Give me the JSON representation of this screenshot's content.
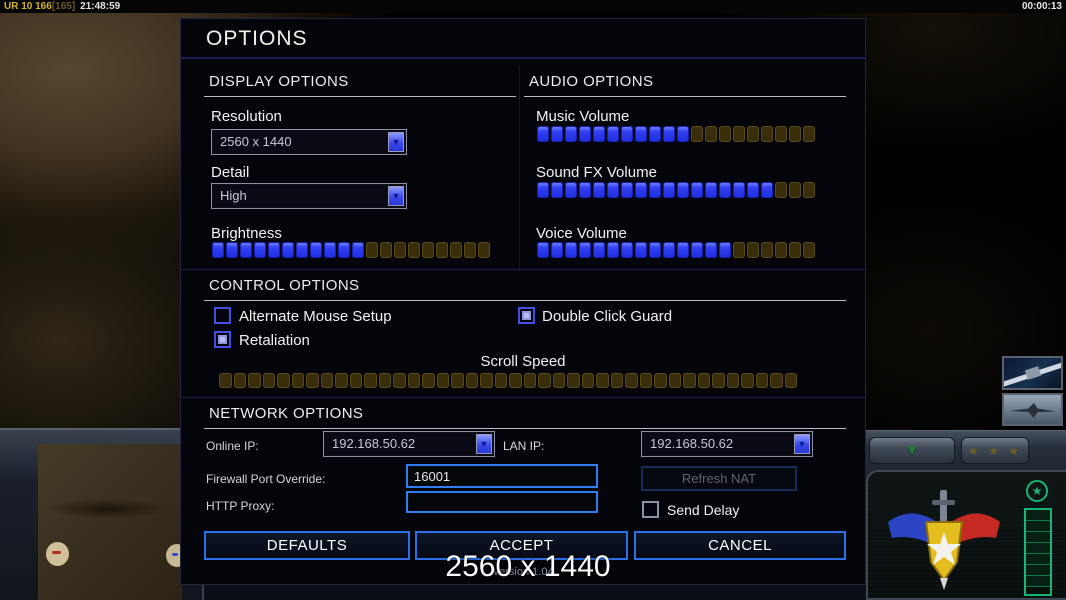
{
  "hud": {
    "left_stats": "UR 10 166",
    "left_bracket": "[165]",
    "left_time": "21:48:59",
    "right_time": "00:00:13"
  },
  "background": {
    "rank_stars": "★ ★ ★",
    "rank_badge_star": "★"
  },
  "dialog": {
    "title": "OPTIONS",
    "display": {
      "header": "DISPLAY OPTIONS",
      "resolution_label": "Resolution",
      "resolution_value": "2560 x 1440",
      "detail_label": "Detail",
      "detail_value": "High",
      "brightness_label": "Brightness",
      "brightness": {
        "filled": 11,
        "total": 20
      }
    },
    "audio": {
      "header": "AUDIO OPTIONS",
      "music_label": "Music Volume",
      "music": {
        "filled": 11,
        "total": 20
      },
      "sfx_label": "Sound FX Volume",
      "sfx": {
        "filled": 17,
        "total": 20
      },
      "voice_label": "Voice Volume",
      "voice": {
        "filled": 14,
        "total": 20
      }
    },
    "control": {
      "header": "CONTROL OPTIONS",
      "alternate_mouse": {
        "label": "Alternate Mouse Setup",
        "checked": false
      },
      "double_click": {
        "label": "Double Click Guard",
        "checked": true
      },
      "retaliation": {
        "label": "Retaliation",
        "checked": true
      },
      "scroll_label": "Scroll Speed",
      "scroll": {
        "filled": 0,
        "total": 40
      }
    },
    "network": {
      "header": "NETWORK OPTIONS",
      "online_ip_label": "Online IP:",
      "online_ip_value": "192.168.50.62",
      "lan_ip_label": "LAN IP:",
      "lan_ip_value": "192.168.50.62",
      "firewall_label": "Firewall Port Override:",
      "firewall_value": "16001",
      "http_proxy_label": "HTTP Proxy:",
      "http_proxy_value": "",
      "refresh_nat_label": "Refresh NAT",
      "send_delay": {
        "label": "Send Delay",
        "checked": false
      }
    },
    "buttons": {
      "defaults": "DEFAULTS",
      "accept": "ACCEPT",
      "cancel": "CANCEL"
    },
    "footer": {
      "version": "Version 1.04",
      "resolution_overlay": "2560 x 1440"
    }
  },
  "colors": {
    "accent_blue": "#2d6fe8",
    "slider_fill": "#3140f2",
    "slider_empty": "#392d0b",
    "meter_green": "#17b573"
  }
}
